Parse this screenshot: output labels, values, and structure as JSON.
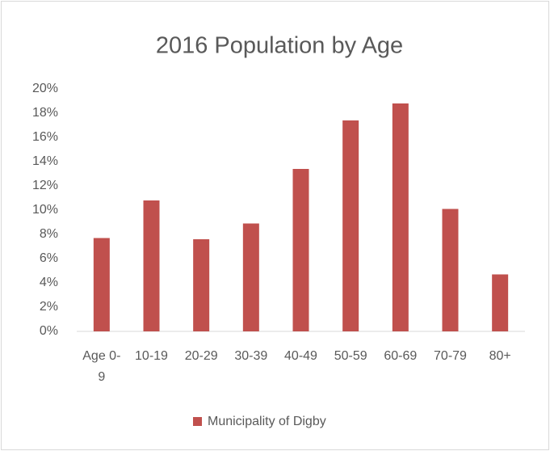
{
  "chart_data": {
    "type": "bar",
    "title": "2016 Population by Age",
    "categories": [
      "Age 0-9",
      "10-19",
      "20-29",
      "30-39",
      "40-49",
      "50-59",
      "60-69",
      "70-79",
      "80+"
    ],
    "series": [
      {
        "name": "Municipality of Digby",
        "color": "#c0504d",
        "values": [
          7.7,
          10.8,
          7.6,
          8.9,
          13.4,
          17.4,
          18.8,
          10.1,
          4.7
        ]
      }
    ],
    "ylim": [
      0,
      20
    ],
    "yticks": [
      {
        "value": 0,
        "label": "0%"
      },
      {
        "value": 2,
        "label": "2%"
      },
      {
        "value": 4,
        "label": "4%"
      },
      {
        "value": 6,
        "label": "6%"
      },
      {
        "value": 8,
        "label": "8%"
      },
      {
        "value": 10,
        "label": "10%"
      },
      {
        "value": 12,
        "label": "12%"
      },
      {
        "value": 14,
        "label": "14%"
      },
      {
        "value": 16,
        "label": "16%"
      },
      {
        "value": 18,
        "label": "18%"
      },
      {
        "value": 20,
        "label": "20%"
      }
    ],
    "grid": false,
    "legend": "bottom"
  }
}
